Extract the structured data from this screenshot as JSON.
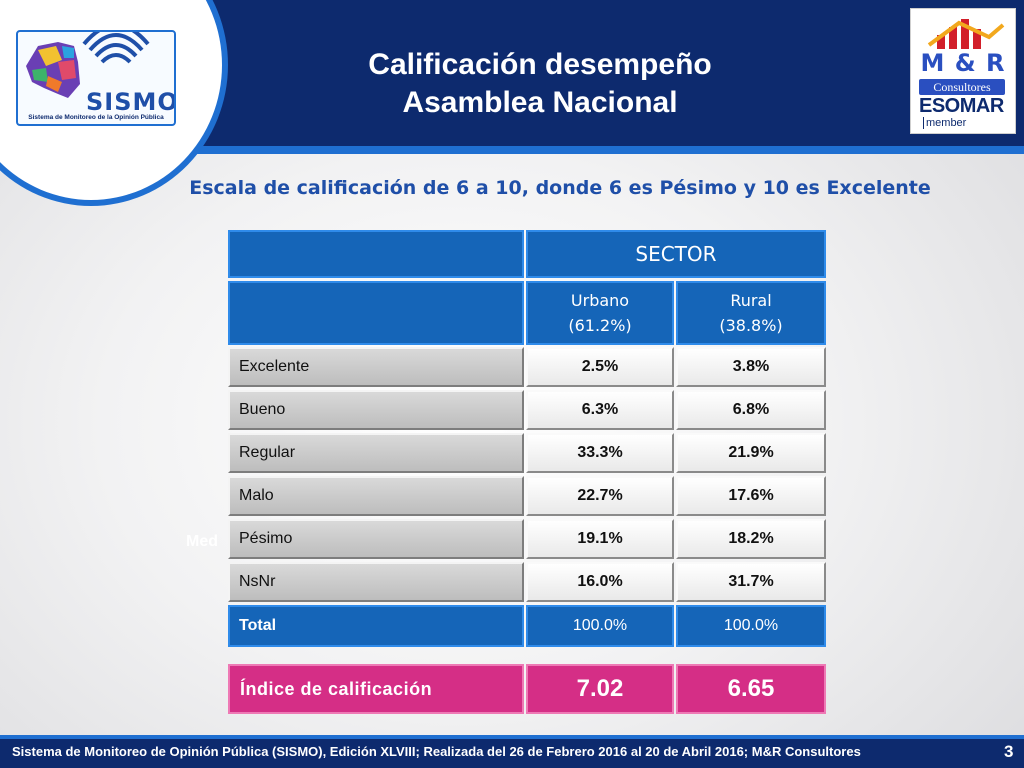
{
  "header": {
    "title_line1": "Calificación desempeño",
    "title_line2": "Asamblea Nacional"
  },
  "sismo_logo": {
    "word": "SISMO",
    "caption": "Sistema de Monitoreo de la Opinión Pública"
  },
  "mr_logo": {
    "mark": "M & R",
    "consultores": "Consultores",
    "esomar": "ESOMAR",
    "member": "member"
  },
  "subtitle": "Escala de calificación de 6 a 10, donde 6 es Pésimo y 10 es Excelente",
  "ghost_text": "Med",
  "table": {
    "sector_header": "SECTOR",
    "columns": [
      {
        "name": "Urbano",
        "share": "(61.2%)"
      },
      {
        "name": "Rural",
        "share": "(38.8%)"
      }
    ],
    "rows": [
      {
        "label": "Excelente",
        "urbano": "2.5%",
        "rural": "3.8%"
      },
      {
        "label": "Bueno",
        "urbano": "6.3%",
        "rural": "6.8%"
      },
      {
        "label": "Regular",
        "urbano": "33.3%",
        "rural": "21.9%"
      },
      {
        "label": "Malo",
        "urbano": "22.7%",
        "rural": "17.6%"
      },
      {
        "label": "Pésimo",
        "urbano": "19.1%",
        "rural": "18.2%"
      },
      {
        "label": "NsNr",
        "urbano": "16.0%",
        "rural": "31.7%"
      }
    ],
    "total": {
      "label": "Total",
      "urbano": "100.0%",
      "rural": "100.0%"
    },
    "index": {
      "label": "Índice de calificación",
      "urbano": "7.02",
      "rural": "6.65"
    }
  },
  "footer": {
    "text": "Sistema de Monitoreo de Opinión Pública (SISMO), Edición XLVIII; Realizada del  26 de Febrero 2016 al 20 de Abril 2016; M&R Consultores",
    "page_number": "3"
  },
  "colors": {
    "header_navy": "#0d2a6e",
    "accent_blue": "#1f6fd1",
    "table_blue": "#1565b8",
    "index_pink": "#d52e86"
  }
}
